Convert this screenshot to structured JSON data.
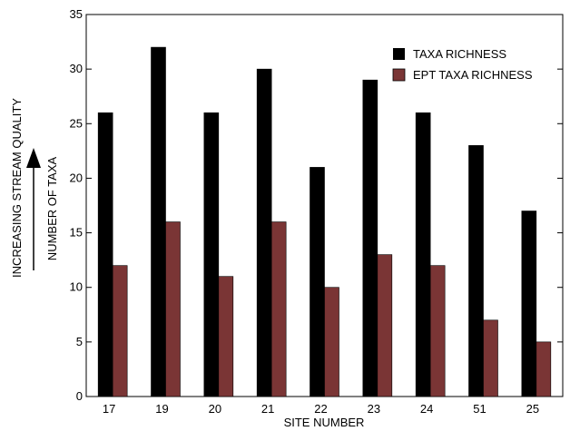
{
  "chart_data": {
    "type": "bar",
    "categories": [
      "17",
      "19",
      "20",
      "21",
      "22",
      "23",
      "24",
      "51",
      "25"
    ],
    "series": [
      {
        "name": "TAXA RICHNESS",
        "values": [
          26,
          32,
          26,
          30,
          21,
          29,
          26,
          23,
          17
        ],
        "color": "#000000"
      },
      {
        "name": "EPT TAXA RICHNESS",
        "values": [
          12,
          16,
          11,
          16,
          10,
          13,
          12,
          7,
          5
        ],
        "color": "#7a3535"
      }
    ],
    "title": "",
    "xlabel": "SITE NUMBER",
    "ylabel": "NUMBER OF TAXA",
    "ylabel_outer": "INCREASING STREAM QUALITY",
    "ylim": [
      0,
      35
    ],
    "yticks": [
      0,
      5,
      10,
      15,
      20,
      25,
      30,
      35
    ],
    "grid": false,
    "legend_position": "top-right"
  }
}
